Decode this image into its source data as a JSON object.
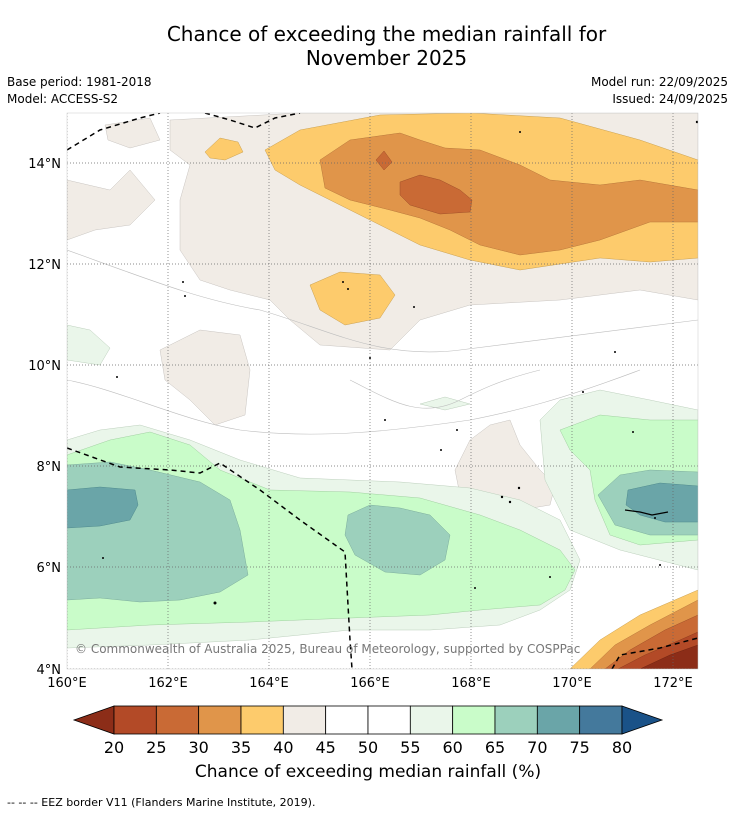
{
  "title_line1": "Chance of exceeding the median rainfall for",
  "title_line2": "November 2025",
  "base_period": "Base period: 1981-2018",
  "model": "Model: ACCESS-S2",
  "model_run": "Model run: 22/09/2025",
  "issued": "Issued: 24/09/2025",
  "copyright": "© Commonwealth of Australia 2025, Bureau of Meteorology, supported by COSPPac",
  "map": {
    "lon_range": [
      160,
      172.5
    ],
    "lat_range": [
      4,
      15
    ],
    "lat_ticks": [
      "4°N",
      "6°N",
      "8°N",
      "10°N",
      "12°N",
      "14°N"
    ],
    "lon_ticks": [
      "160°E",
      "162°E",
      "164°E",
      "166°E",
      "168°E",
      "170°E",
      "172°E"
    ]
  },
  "colorbar": {
    "labels": [
      "20",
      "25",
      "30",
      "35",
      "40",
      "45",
      "50",
      "55",
      "60",
      "65",
      "70",
      "75",
      "80"
    ],
    "colors": [
      "#8c2d18",
      "#b34a27",
      "#c96a35",
      "#e0954a",
      "#fdcb6c",
      "#f1ece6",
      "#ffffff",
      "#ffffff",
      "#eaf6ea",
      "#c9fcc9",
      "#9cd0bc",
      "#6aa5a8",
      "#44799c",
      "#1a5288"
    ]
  },
  "colorbar_title": "Chance of exceeding median rainfall (%)",
  "footnote": "--  --  -- EEZ border V11 (Flanders Marine Institute, 2019)."
}
